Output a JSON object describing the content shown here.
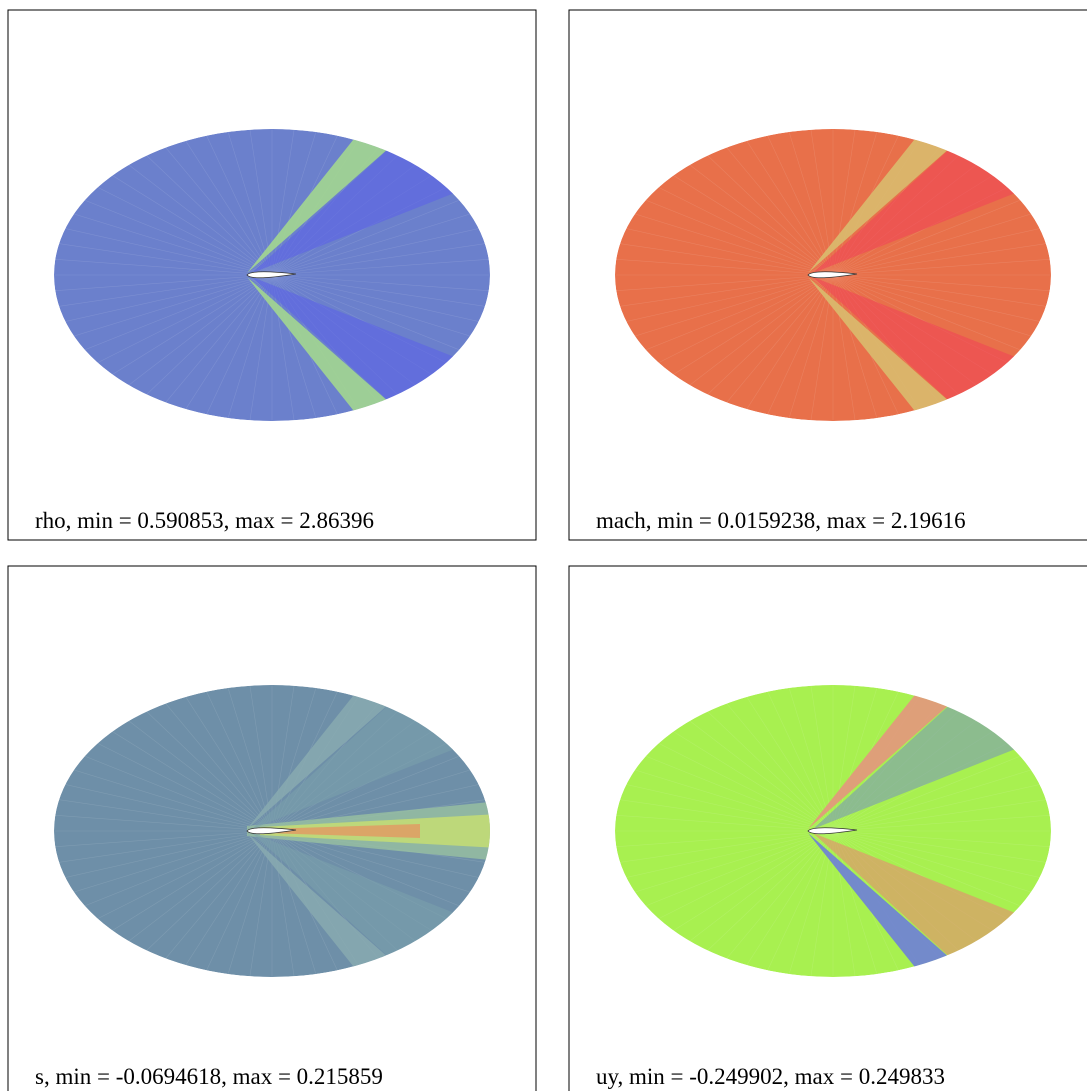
{
  "panels": [
    {
      "caption": "rho,  min = 0.590853,  max = 2.86396"
    },
    {
      "caption": "mach,  min = 0.0159238,  max = 2.19616"
    },
    {
      "caption": "s,  min = -0.0694618,  max = 0.215859"
    },
    {
      "caption": "uy,  min = -0.249902,  max = 0.249833"
    }
  ]
}
